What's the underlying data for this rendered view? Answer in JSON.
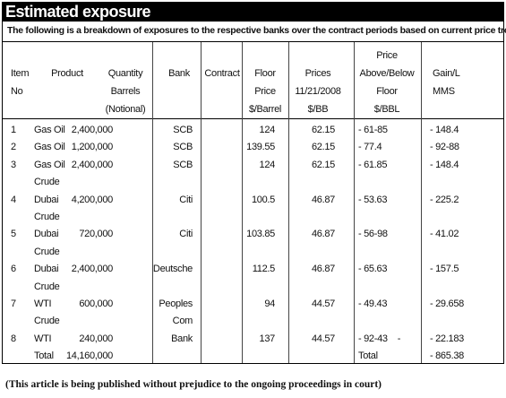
{
  "header": {
    "title": "Estimated exposure",
    "subtitle": "The following is a breakdown of exposures to the respective banks over the contract periods based on current price trends:"
  },
  "table": {
    "columns": [
      [
        "Item",
        "No"
      ],
      [
        "Product"
      ],
      [
        "Quantity",
        "Barrels",
        "(Notional)"
      ],
      [
        "Bank"
      ],
      [
        "Contract"
      ],
      [
        "Floor",
        "Price",
        "$/Barrel"
      ],
      [
        "Prices",
        "11/21/2008",
        "$/BB"
      ],
      [
        "Price",
        "Above/Below",
        "Floor",
        "$/BBL"
      ],
      [
        "Gain/L",
        "MMS"
      ]
    ],
    "rows": [
      [
        "1",
        "Gas Oil",
        "2,400,000",
        "SCB",
        null,
        "124",
        "62.15",
        "- 61-85",
        "- 148.4"
      ],
      [
        "2",
        "Gas Oil",
        "1,200,000",
        "SCB",
        null,
        "139.55",
        "62.15",
        "- 77.4",
        "- 92-88"
      ],
      [
        "3",
        "Gas Oil",
        "2,400,000",
        "SCB",
        null,
        "124",
        "62.15",
        "- 61.85",
        "- 148.4"
      ],
      [
        null,
        "Crude",
        null,
        null,
        null,
        null,
        null,
        null,
        null
      ],
      [
        "4",
        "Dubai",
        "4,200,000",
        "Citi",
        null,
        "100.5",
        "46.87",
        "- 53.63",
        "- 225.2"
      ],
      [
        null,
        "Crude",
        null,
        null,
        null,
        null,
        null,
        null,
        null
      ],
      [
        "5",
        "Dubai",
        "720,000",
        "Citi",
        null,
        "103.85",
        "46.87",
        "- 56-98",
        "- 41.02"
      ],
      [
        null,
        "Crude",
        null,
        null,
        null,
        null,
        null,
        null,
        null
      ],
      [
        "6",
        "Dubai",
        "2,400,000",
        "Deutsche",
        null,
        "112.5",
        "46.87",
        "- 65.63",
        "- 157.5"
      ],
      [
        null,
        "Crude",
        null,
        null,
        null,
        null,
        null,
        null,
        null
      ],
      [
        "7",
        "WTI",
        "600,000",
        "Peoples",
        null,
        "94",
        "44.57",
        "- 49.43",
        "- 29.658"
      ],
      [
        null,
        "Crude",
        null,
        "Com",
        null,
        null,
        null,
        null,
        null
      ],
      [
        "8",
        "WTI",
        "240,000",
        "Bank",
        null,
        "137",
        "44.57",
        "- 92-43    -",
        "- 22.183"
      ],
      [
        null,
        "Total",
        "14,160,000",
        null,
        null,
        null,
        null,
        "Total",
        "- 865.38"
      ]
    ]
  },
  "footnote": "(This article is being published without prejudice to the ongoing proceedings in court)"
}
